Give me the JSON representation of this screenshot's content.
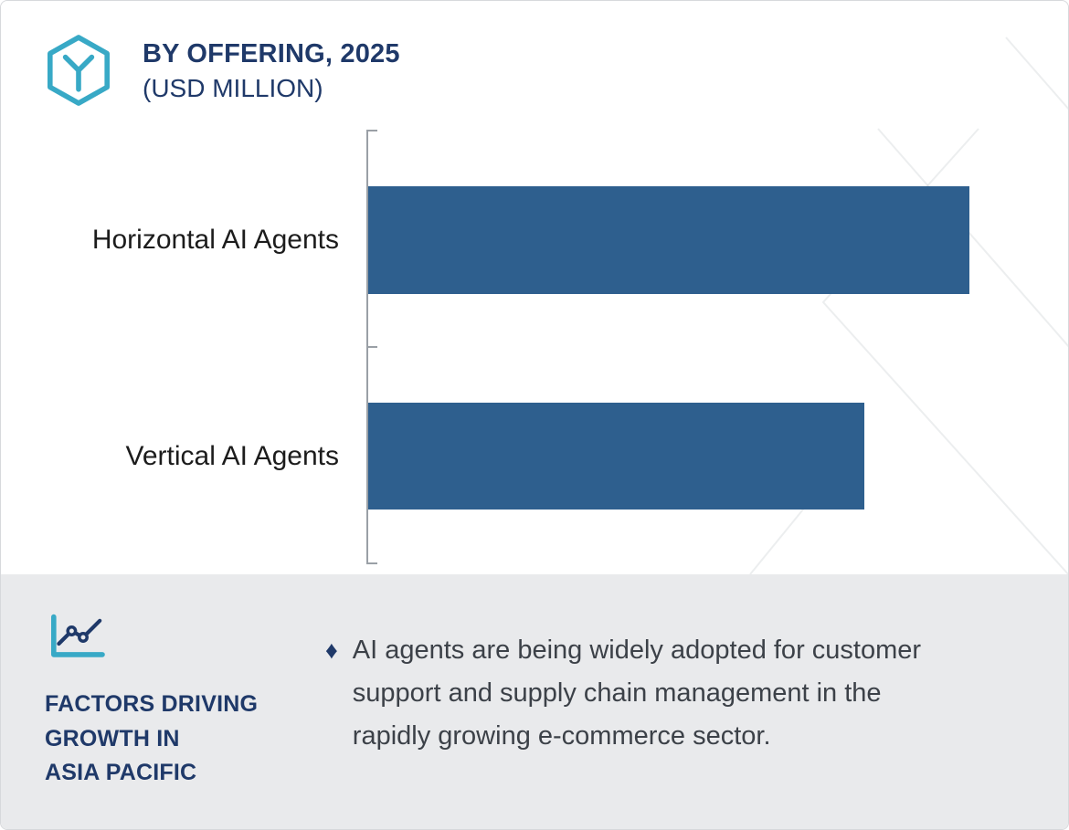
{
  "header": {
    "title": "BY OFFERING, 2025",
    "subtitle": "(USD MILLION)",
    "icon": "hexagon-offering-icon"
  },
  "chart_data": {
    "type": "bar",
    "orientation": "horizontal",
    "title": "BY OFFERING, 2025 (USD MILLION)",
    "categories": [
      "Horizontal AI Agents",
      "Vertical AI Agents"
    ],
    "values": [
      100,
      82.5
    ],
    "values_note": "relative bar lengths; value axis and data labels are not shown in the figure",
    "value_axis_visible": false,
    "grid": false,
    "legend": false,
    "bar_color": "#2e5f8e",
    "xlabel": "",
    "ylabel": ""
  },
  "footer": {
    "icon": "line-chart-icon",
    "heading": "FACTORS DRIVING\nGROWTH IN\nASIA PACIFIC",
    "bullet_glyph": "♦",
    "text": "AI agents are being widely adopted for customer support and supply chain management in the rapidly growing e-commerce sector."
  },
  "colors": {
    "bar": "#2e5f8e",
    "navy_text": "#1f3969",
    "teal_accent": "#38a9c6",
    "footer_background": "#e9eaec",
    "axis_gray": "#9aa0a6"
  }
}
